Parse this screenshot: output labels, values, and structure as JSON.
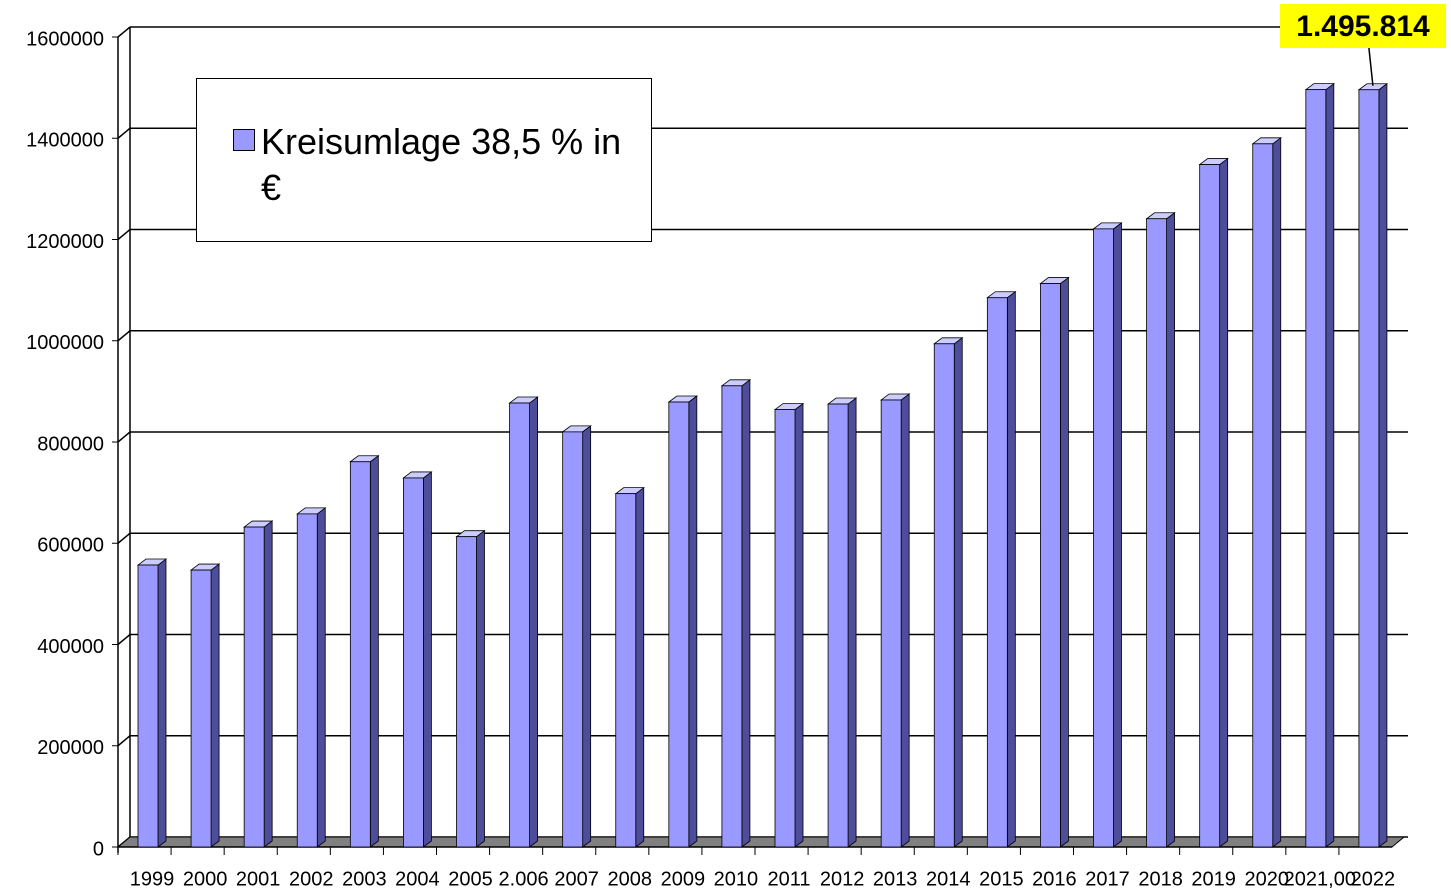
{
  "chart_data": {
    "type": "bar3d",
    "categories": [
      "1999",
      "2000",
      "2001",
      "2002",
      "2003",
      "2004",
      "2005",
      "2.006",
      "2007",
      "2008",
      "2009",
      "2010",
      "2011",
      "2012",
      "2013",
      "2014",
      "2015",
      "2016",
      "2017",
      "2018",
      "2019",
      "2020",
      "2021,00",
      "2022"
    ],
    "series": [
      {
        "name": "Kreisumlage 38,5 % in €",
        "color": "#9999ff",
        "values": [
          557000,
          547000,
          632000,
          658000,
          761000,
          729000,
          613000,
          877000,
          820000,
          698000,
          879000,
          911000,
          864000,
          875000,
          883000,
          994000,
          1085000,
          1113000,
          1221000,
          1241000,
          1348000,
          1389000,
          1496000,
          1495814
        ],
        "value_labels": [
          null,
          null,
          null,
          null,
          null,
          null,
          null,
          null,
          null,
          null,
          null,
          null,
          null,
          null,
          null,
          null,
          null,
          null,
          null,
          null,
          null,
          null,
          null,
          "1.495.814"
        ]
      }
    ],
    "ylim": [
      0,
      1600000
    ],
    "yticks": [
      0,
      200000,
      400000,
      600000,
      800000,
      1000000,
      1200000,
      1400000,
      1600000
    ],
    "grid": true,
    "legend": "top-left"
  }
}
